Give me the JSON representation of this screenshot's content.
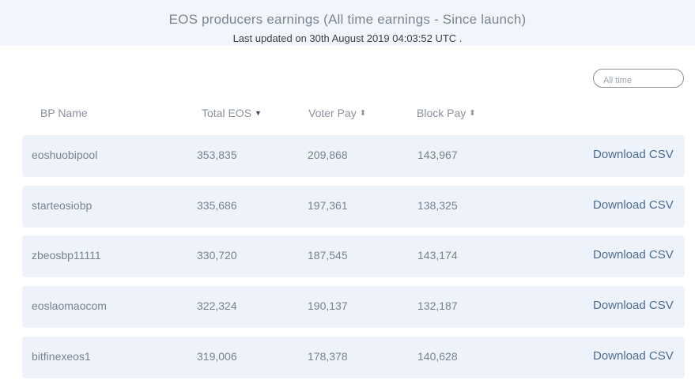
{
  "header": {
    "title": "EOS producers earnings (All time earnings - Since launch)",
    "subtitle": "Last updated on 30th August 2019 04:03:52 UTC ."
  },
  "filter": {
    "placeholder": "All time"
  },
  "columns": [
    {
      "label": "BP Name",
      "icon": ""
    },
    {
      "label": "Total EOS",
      "icon": "sort-desc-icon"
    },
    {
      "label": "Voter Pay",
      "icon": "sort-icon"
    },
    {
      "label": "Block Pay",
      "icon": "sort-icon"
    }
  ],
  "rows": [
    {
      "name": "eoshuobipool",
      "total": "353,835",
      "voter": "209,868",
      "block": "143,967",
      "action": "Download CSV"
    },
    {
      "name": "starteosiobp",
      "total": "335,686",
      "voter": "197,361",
      "block": "138,325",
      "action": "Download CSV"
    },
    {
      "name": "zbeosbp11111",
      "total": "330,720",
      "voter": "187,545",
      "block": "143,174",
      "action": "Download CSV"
    },
    {
      "name": "eoslaomaocom",
      "total": "322,324",
      "voter": "190,137",
      "block": "132,187",
      "action": "Download CSV"
    },
    {
      "name": "bitfinexeos1",
      "total": "319,006",
      "voter": "178,378",
      "block": "140,628",
      "action": "Download CSV"
    }
  ],
  "colors": {
    "header_bg": "#f2f6fc",
    "row_bg": "#eef3fb",
    "link": "#4a6b90"
  }
}
